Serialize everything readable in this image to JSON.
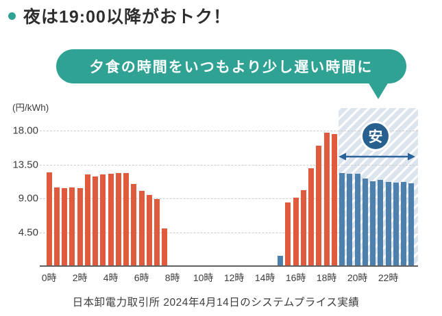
{
  "title": {
    "text": "夜は19:00以降がおトク！"
  },
  "callout": {
    "text": "夕食の時間をいつもより少し遅い時間に"
  },
  "badge": {
    "text": "安"
  },
  "caption": "日本卸電力取引所 2024年4月14日のシステムプライス実績",
  "colors": {
    "accent-teal": "#2fa294",
    "bar-normal": "#e05b3e",
    "bar-cheap": "#4d80ad",
    "navy": "#27608e",
    "hatch-bg": "#dce4ee",
    "text-dark": "#2e2e2e",
    "text-gray": "#3c3c3c",
    "grid-line": "#cccccc",
    "axis-line": "#5f5f5f"
  },
  "chart_data": {
    "type": "bar",
    "title": "夜は19:00以降がおトク！",
    "unit_label": "(円/kWh)",
    "ylabel": "円/kWh",
    "ylim": [
      0,
      21.6
    ],
    "grid": true,
    "y_ticks": [
      18.0,
      13.5,
      9.0,
      4.5
    ],
    "y_tick_labels": [
      "18.00",
      "13.50",
      "9.00",
      "4.50"
    ],
    "x_tick_labels": [
      "0時",
      "2時",
      "4時",
      "6時",
      "8時",
      "10時",
      "12時",
      "14時",
      "16時",
      "18時",
      "20時",
      "22時"
    ],
    "x_ticks_every_n_slots": 4,
    "highlight_start_slot": 38,
    "highlight_label": "安",
    "highlight_range": "19:00-24:00",
    "times": [
      "0:00",
      "0:30",
      "1:00",
      "1:30",
      "2:00",
      "2:30",
      "3:00",
      "3:30",
      "4:00",
      "4:30",
      "5:00",
      "5:30",
      "6:00",
      "6:30",
      "7:00",
      "7:30",
      "8:00",
      "8:30",
      "9:00",
      "9:30",
      "10:00",
      "10:30",
      "11:00",
      "11:30",
      "12:00",
      "12:30",
      "13:00",
      "13:30",
      "14:00",
      "14:30",
      "15:00",
      "15:30",
      "16:00",
      "16:30",
      "17:00",
      "17:30",
      "18:00",
      "18:30",
      "19:00",
      "19:30",
      "20:00",
      "20:30",
      "21:00",
      "21:30",
      "22:00",
      "22:30",
      "23:00",
      "23:30"
    ],
    "values": [
      12.5,
      10.5,
      10.4,
      10.5,
      10.4,
      12.2,
      11.9,
      12.2,
      12.3,
      12.4,
      12.4,
      10.9,
      10.0,
      9.5,
      8.9,
      5.0,
      0.01,
      0.01,
      0.01,
      0.01,
      0.01,
      0.01,
      0.01,
      0.01,
      0.01,
      0.01,
      0.01,
      0.01,
      0.01,
      0.01,
      1.4,
      8.5,
      9.1,
      10.1,
      13.0,
      16.0,
      17.8,
      17.6,
      12.4,
      12.3,
      12.3,
      11.7,
      11.3,
      11.5,
      11.2,
      11.1,
      11.2,
      11.0
    ],
    "groups": [
      "normal",
      "normal",
      "normal",
      "normal",
      "normal",
      "normal",
      "normal",
      "normal",
      "normal",
      "normal",
      "normal",
      "normal",
      "normal",
      "normal",
      "normal",
      "normal",
      "cheap",
      "cheap",
      "cheap",
      "cheap",
      "cheap",
      "cheap",
      "cheap",
      "cheap",
      "cheap",
      "cheap",
      "cheap",
      "cheap",
      "cheap",
      "cheap",
      "cheap",
      "normal",
      "normal",
      "normal",
      "normal",
      "normal",
      "normal",
      "normal",
      "cheap",
      "cheap",
      "cheap",
      "cheap",
      "cheap",
      "cheap",
      "cheap",
      "cheap",
      "cheap",
      "cheap"
    ],
    "bar_colors": {
      "normal": "#e05b3e",
      "cheap": "#4d80ad"
    }
  }
}
